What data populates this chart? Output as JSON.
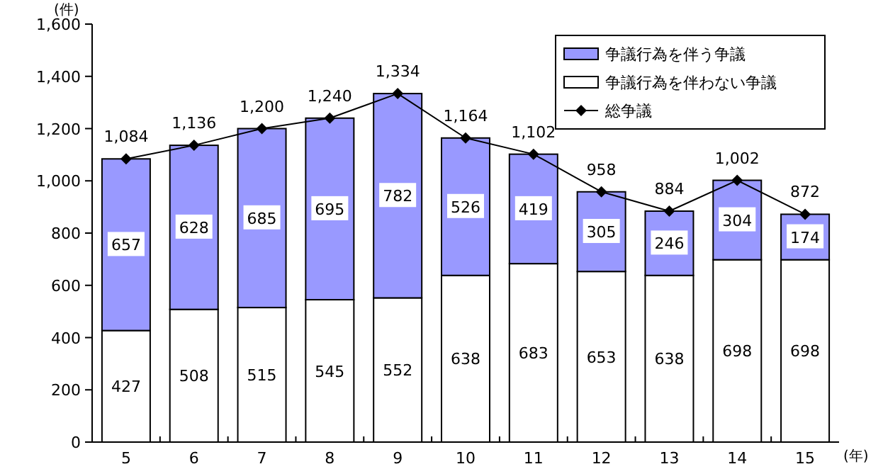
{
  "chart_data": {
    "type": "bar",
    "stacked": true,
    "legend": "top right",
    "marker": "diamond",
    "ylabel": "(件)",
    "xlabel": "(年)",
    "categories": [
      "5",
      "6",
      "7",
      "8",
      "9",
      "10",
      "11",
      "12",
      "13",
      "14",
      "15"
    ],
    "ylim": [
      0,
      1600
    ],
    "yticks": [
      0,
      200,
      400,
      600,
      800,
      {
        "value": 1000,
        "label": "1,000"
      },
      {
        "value": 1200,
        "label": "1,200"
      },
      {
        "value": 1400,
        "label": "1,400"
      },
      {
        "value": 1600,
        "label": "1,600"
      }
    ],
    "series": [
      {
        "name": "争議行為を伴わない争議",
        "color": "#ffffff",
        "values": [
          427,
          508,
          515,
          545,
          552,
          638,
          683,
          653,
          638,
          698,
          698
        ],
        "value_labels": [
          "427",
          "508",
          "515",
          "545",
          "552",
          "638",
          "683",
          "653",
          "638",
          "698",
          "698"
        ]
      },
      {
        "name": "争議行為を伴う争議",
        "color": "#9999ff",
        "values": [
          657,
          628,
          685,
          695,
          782,
          526,
          419,
          305,
          246,
          304,
          174
        ],
        "value_labels": [
          "657",
          "628",
          "685",
          "695",
          "782",
          "526",
          "419",
          "305",
          "246",
          "304",
          "174"
        ]
      },
      {
        "name": "総争議",
        "type": "line",
        "color": "#000000",
        "values": [
          1084,
          1136,
          1200,
          1240,
          1334,
          1164,
          1102,
          958,
          884,
          1002,
          872
        ],
        "value_labels": [
          "1,084",
          "1,136",
          "1,200",
          "1,240",
          "1,334",
          "1,164",
          "1,102",
          "958",
          "884",
          "1,002",
          "872"
        ]
      }
    ]
  }
}
